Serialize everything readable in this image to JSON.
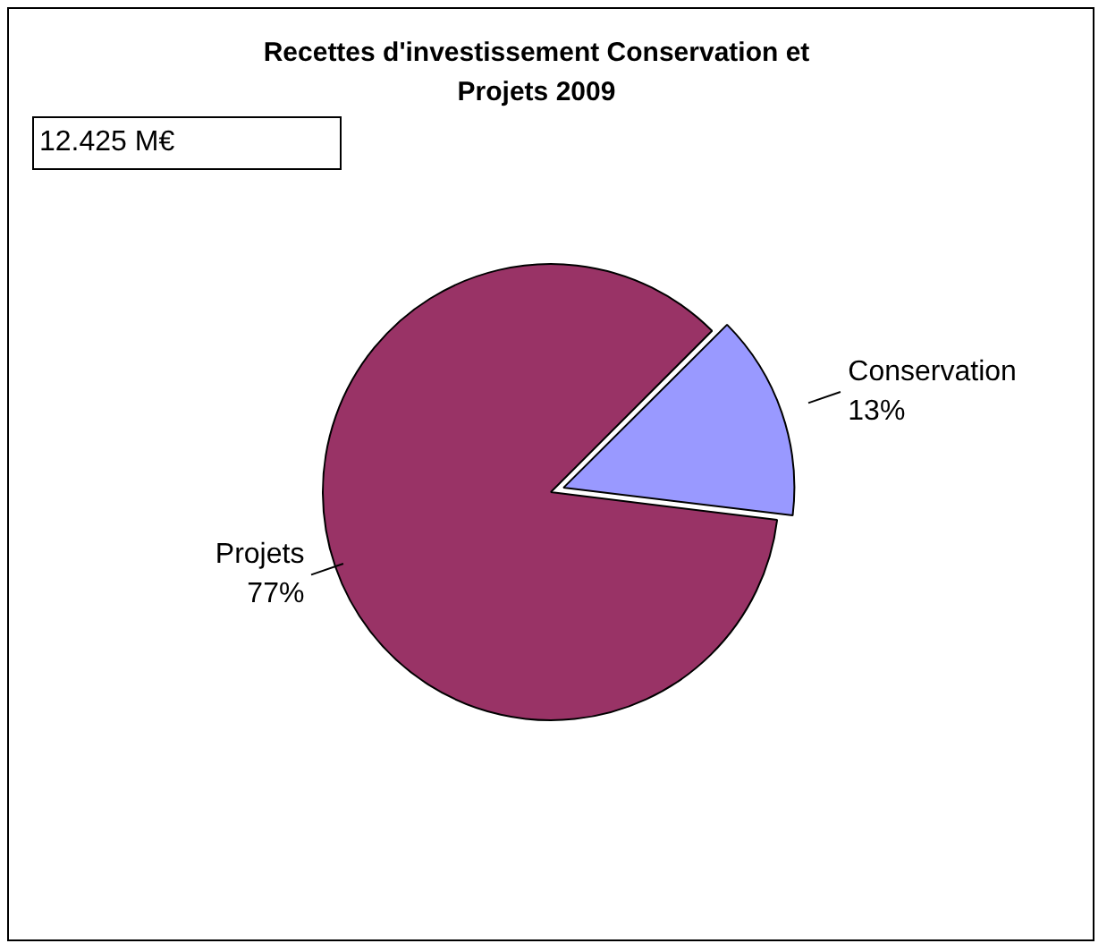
{
  "chart_data": {
    "type": "pie",
    "title": "Recettes d'investissement Conservation et Projets 2009",
    "categories": [
      "Projets",
      "Conservation"
    ],
    "values": [
      77,
      13
    ],
    "colors": [
      "#993366",
      "#9999ff"
    ],
    "value_labels": [
      "77%",
      "13%"
    ],
    "annotations": [
      "12.425 M€"
    ],
    "legend": false
  }
}
